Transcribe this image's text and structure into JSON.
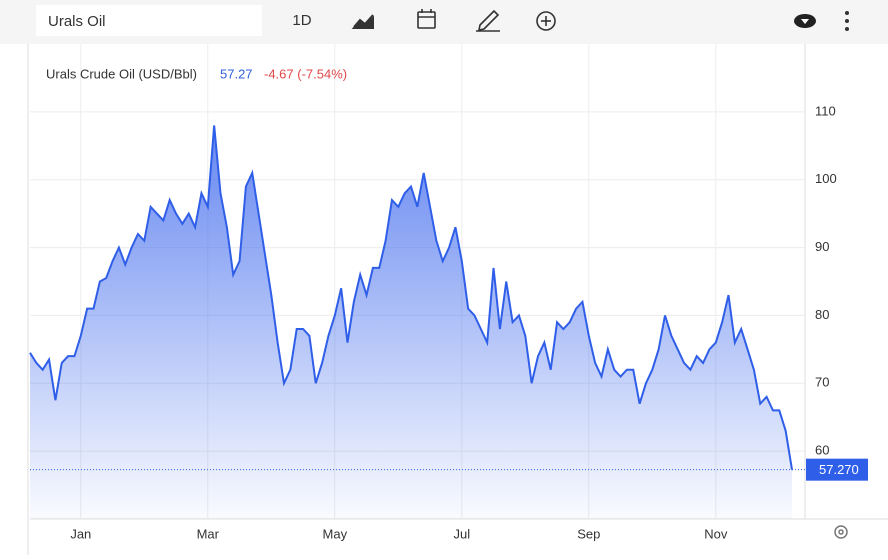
{
  "toolbar": {
    "search": "Urals Oil",
    "interval": "1D"
  },
  "chart_data": {
    "type": "area",
    "categories": [
      null,
      null,
      null,
      null,
      null,
      null,
      null,
      null,
      "Jan",
      null,
      null,
      null,
      null,
      null,
      null,
      null,
      null,
      null,
      null,
      null,
      null,
      null,
      null,
      null,
      null,
      null,
      null,
      null,
      "Mar",
      null,
      null,
      null,
      null,
      null,
      null,
      null,
      null,
      null,
      null,
      null,
      null,
      null,
      null,
      null,
      null,
      null,
      null,
      null,
      "May",
      null,
      null,
      null,
      null,
      null,
      null,
      null,
      null,
      null,
      null,
      null,
      null,
      null,
      null,
      null,
      null,
      null,
      null,
      null,
      "Jul",
      null,
      null,
      null,
      null,
      null,
      null,
      null,
      null,
      null,
      null,
      null,
      null,
      null,
      null,
      null,
      null,
      null,
      null,
      null,
      "Sep",
      null,
      null,
      null,
      null,
      null,
      null,
      null,
      null,
      null,
      null,
      null,
      null,
      null,
      null,
      null,
      null,
      null,
      null,
      null,
      "Nov",
      null,
      null,
      null,
      null,
      null,
      null,
      null,
      null,
      null,
      null,
      null,
      null
    ],
    "series": [
      {
        "name": "Urals Crude Oil (USD/Bbl)",
        "color": "#2f5ee8",
        "values": [
          74.5,
          73,
          72,
          73.5,
          67.5,
          73,
          74,
          74,
          77,
          81,
          81,
          85,
          85.5,
          88,
          90,
          87.5,
          90,
          92,
          91,
          96,
          95,
          94,
          97,
          95,
          93.5,
          95,
          93,
          98,
          96,
          108,
          98,
          93,
          86,
          88,
          99,
          101,
          95,
          89,
          83,
          76,
          70,
          72,
          78,
          78,
          77,
          70,
          73,
          77,
          80,
          84,
          76,
          82,
          86,
          83,
          87,
          87,
          91,
          97,
          96,
          98,
          99,
          96,
          101,
          96,
          91,
          88,
          90,
          93,
          88,
          81,
          80,
          78,
          76,
          87,
          78,
          85,
          79,
          80,
          77,
          70,
          74,
          76,
          72,
          79,
          78,
          79,
          81,
          82,
          77,
          73,
          71,
          75,
          72,
          71,
          72,
          72,
          67,
          70,
          72,
          75,
          80,
          77,
          75,
          73,
          72,
          74,
          73,
          75,
          76,
          79,
          83,
          76,
          78,
          75,
          72,
          67,
          68,
          66,
          66,
          63,
          57.27
        ]
      }
    ],
    "price": "57.27",
    "change": "-4.67 (-7.54%)",
    "last_label": {
      "value": 57.27,
      "label": "57.270"
    },
    "ylim": [
      50,
      120
    ],
    "yticks": [
      60,
      70,
      80,
      90,
      100,
      110
    ],
    "grid": true
  }
}
